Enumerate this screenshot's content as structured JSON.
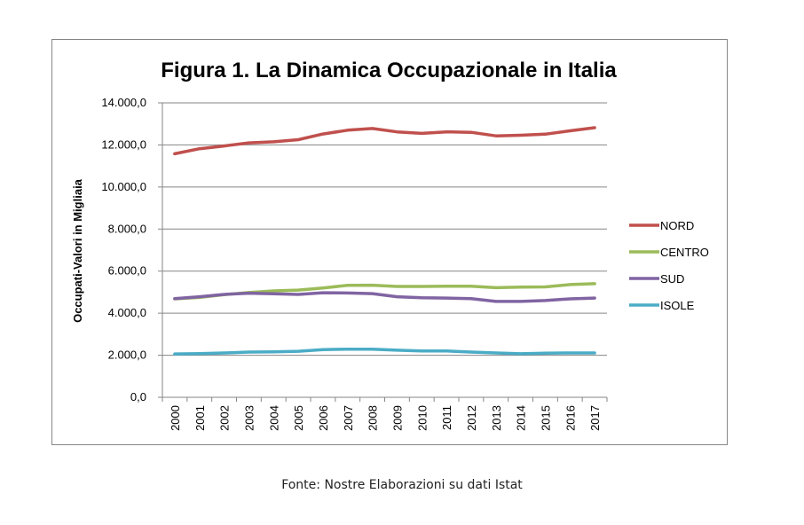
{
  "chart_data": {
    "type": "line",
    "title": "Figura 1. La Dinamica Occupazionale in Italia",
    "xlabel": "",
    "ylabel": "Occupati-Valori in Migliaia",
    "ylim": [
      0,
      14000
    ],
    "y_ticks": [
      0,
      2000,
      4000,
      6000,
      8000,
      10000,
      12000,
      14000
    ],
    "y_tick_labels": [
      "0,0",
      "2.000,0",
      "4.000,0",
      "6.000,0",
      "8.000,0",
      "10.000,0",
      "12.000,0",
      "14.000,0"
    ],
    "grid": true,
    "legend_position": "right",
    "categories": [
      "2000",
      "2001",
      "2002",
      "2003",
      "2004",
      "2005",
      "2006",
      "2007",
      "2008",
      "2009",
      "2010",
      "2011",
      "2012",
      "2013",
      "2014",
      "2015",
      "2016",
      "2017"
    ],
    "series": [
      {
        "name": "NORD",
        "color": "#C0504D",
        "values": [
          11580,
          11820,
          11950,
          12100,
          12150,
          12250,
          12520,
          12700,
          12780,
          12620,
          12550,
          12620,
          12600,
          12430,
          12460,
          12510,
          12670,
          12820
        ]
      },
      {
        "name": "CENTRO",
        "color": "#9BBB59",
        "values": [
          4680,
          4750,
          4880,
          4980,
          5060,
          5100,
          5200,
          5320,
          5330,
          5270,
          5270,
          5280,
          5280,
          5210,
          5240,
          5250,
          5360,
          5400
        ]
      },
      {
        "name": "SUD",
        "color": "#8064A2",
        "values": [
          4690,
          4780,
          4890,
          4950,
          4920,
          4890,
          4970,
          4960,
          4930,
          4780,
          4730,
          4720,
          4690,
          4560,
          4560,
          4600,
          4680,
          4720
        ]
      },
      {
        "name": "ISOLE",
        "color": "#4BACC6",
        "values": [
          2060,
          2080,
          2110,
          2150,
          2160,
          2190,
          2270,
          2290,
          2290,
          2240,
          2200,
          2200,
          2150,
          2110,
          2070,
          2100,
          2110,
          2110
        ]
      }
    ]
  },
  "source_note": "Fonte: Nostre Elaborazioni su dati Istat"
}
